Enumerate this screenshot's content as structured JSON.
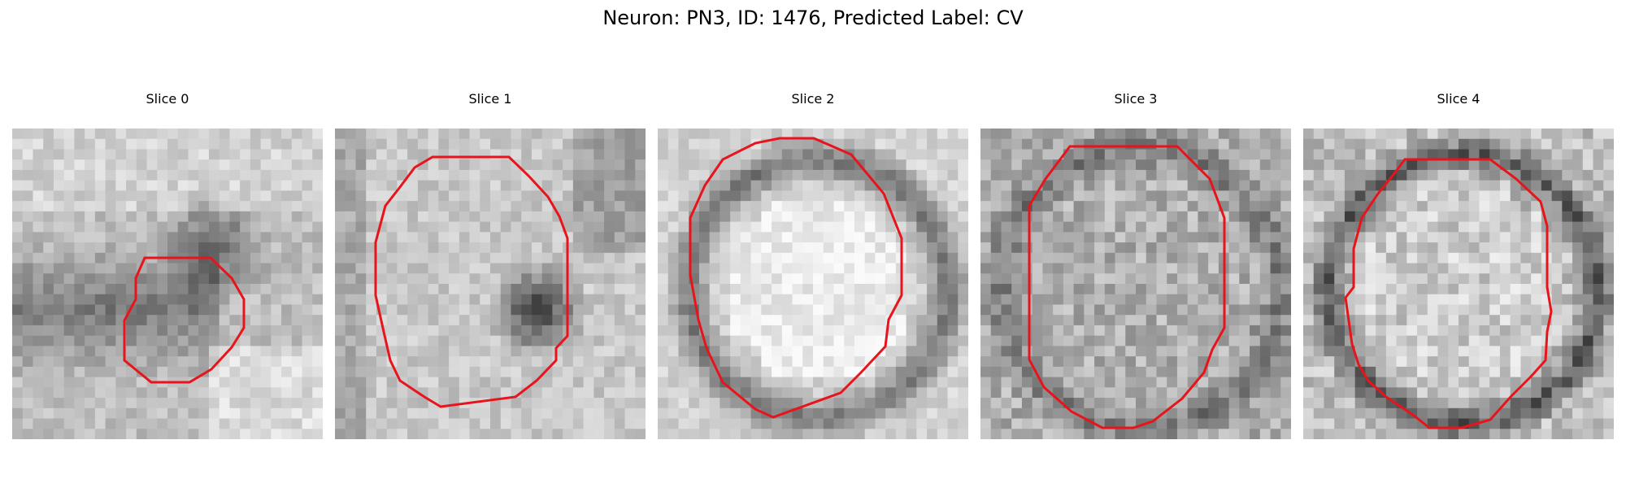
{
  "figure": {
    "title": "Neuron: PN3, ID: 1476, Predicted Label: CV"
  },
  "panels": [
    {
      "title": "Slice 0",
      "outline_color": "#e8141c"
    },
    {
      "title": "Slice 1",
      "outline_color": "#e8141c"
    },
    {
      "title": "Slice 2",
      "outline_color": "#e8141c"
    },
    {
      "title": "Slice 3",
      "outline_color": "#e8141c"
    },
    {
      "title": "Slice 4",
      "outline_color": "#e8141c"
    }
  ]
}
